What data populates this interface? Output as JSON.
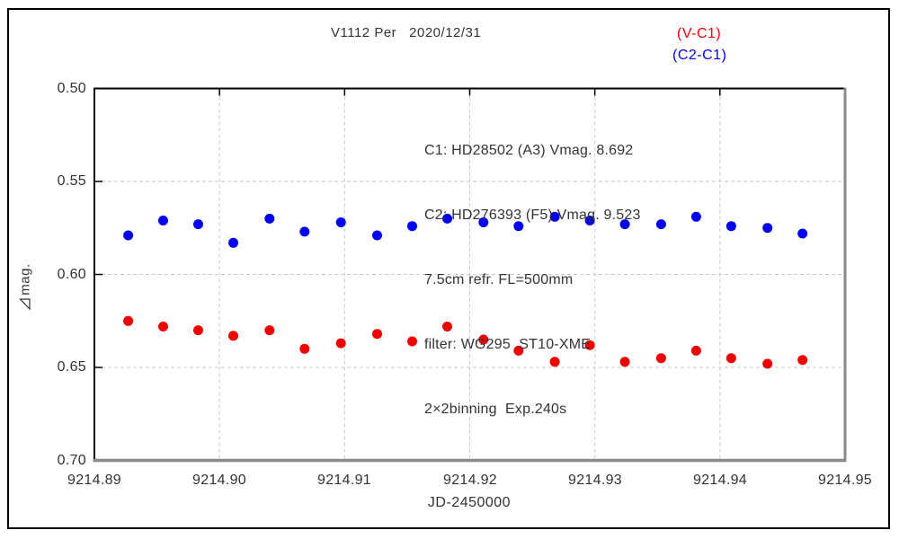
{
  "header": {
    "title": "V1112 Per   2020/12/31"
  },
  "legend": [
    {
      "label": "(V-C1)",
      "color": "#ee0000"
    },
    {
      "label": "(C2-C1)",
      "color": "#0000ee"
    }
  ],
  "annotation": {
    "lines": [
      "C1: HD28502 (A3) Vmag. 8.692",
      "C2: HD276393 (F5) Vmag. 9.523",
      "7.5cm refr. FL=500mm",
      "filter: WG295  ST10-XME",
      "2×2binning  Exp.240s"
    ]
  },
  "chart_data": {
    "type": "scatter",
    "title": "V1112 Per 2020/12/31",
    "xlabel": "JD-2450000",
    "ylabel": "⧿mag.",
    "ylabel_text": "mag.",
    "xlim": [
      9214.89,
      9214.95
    ],
    "ylim_top": 0.5,
    "ylim_bottom": 0.7,
    "y_axis_inverted_magnitude": true,
    "grid": true,
    "legend_position": "top-right",
    "xticks": [
      {
        "v": 9214.89,
        "label": "9214.89"
      },
      {
        "v": 9214.9,
        "label": "9214.90"
      },
      {
        "v": 9214.91,
        "label": "9214.91"
      },
      {
        "v": 9214.92,
        "label": "9214.92"
      },
      {
        "v": 9214.93,
        "label": "9214.93"
      },
      {
        "v": 9214.94,
        "label": "9214.94"
      },
      {
        "v": 9214.95,
        "label": "9214.95"
      }
    ],
    "yticks": [
      {
        "v": 0.5,
        "label": "0.50"
      },
      {
        "v": 0.55,
        "label": "0.55"
      },
      {
        "v": 0.6,
        "label": "0.60"
      },
      {
        "v": 0.65,
        "label": "0.65"
      },
      {
        "v": 0.7,
        "label": "0.70"
      }
    ],
    "xgrid_values": [
      9214.9,
      9214.91,
      9214.92,
      9214.93,
      9214.94
    ],
    "ygrid_values": [
      0.55,
      0.6,
      0.65
    ],
    "x": [
      9214.8927,
      9214.8955,
      9214.8983,
      9214.9011,
      9214.904,
      9214.9068,
      9214.9097,
      9214.9126,
      9214.9154,
      9214.9182,
      9214.9211,
      9214.9239,
      9214.9268,
      9214.9296,
      9214.9324,
      9214.9353,
      9214.9381,
      9214.9409,
      9214.9438,
      9214.9466
    ],
    "series": [
      {
        "name": "(V-C1)",
        "color": "#ee0000",
        "values": [
          0.625,
          0.628,
          0.63,
          0.633,
          0.63,
          0.64,
          0.637,
          0.632,
          0.636,
          0.628,
          0.635,
          0.641,
          0.647,
          0.638,
          0.647,
          0.645,
          0.641,
          0.645,
          0.648,
          0.646
        ]
      },
      {
        "name": "(C2-C1)",
        "color": "#0000ee",
        "values": [
          0.579,
          0.571,
          0.573,
          0.583,
          0.57,
          0.577,
          0.572,
          0.579,
          0.574,
          0.57,
          0.572,
          0.574,
          0.569,
          0.571,
          0.573,
          0.573,
          0.569,
          0.574,
          0.575,
          0.578
        ]
      }
    ],
    "style": {
      "marker_diameter_px": 11,
      "grid_color": "#c9c9c9",
      "frame_dark_color": "#000000",
      "frame_shadow_color": "#8a8a8a",
      "text_color": "#333333",
      "background": "#ffffff"
    }
  }
}
